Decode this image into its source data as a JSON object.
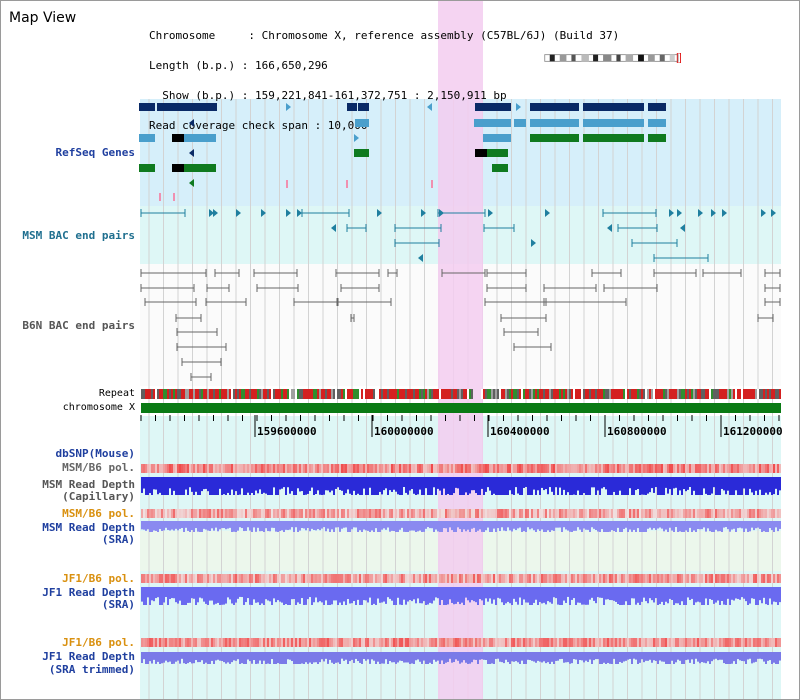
{
  "app": {
    "title": "Map View"
  },
  "info": {
    "chromosome_line": "Chromosome     : Chromosome X, reference assembly (C57BL/6J) (Build 37)",
    "length_line": "Length (b.p.) : 166,650,296",
    "show_line": "  Show (b.p.) : 159,221,841-161,372,751 : 2,150,911 bp",
    "coverage_line": "Read coverage check span : 10,000"
  },
  "tracks": {
    "refseq": "RefSeq Genes",
    "msm_bac": "MSM BAC end pairs",
    "b6n_bac": "B6N BAC end pairs",
    "repeat": "Repeat",
    "chromosome": "chromosome X",
    "dbsnp": "dbSNP(Mouse)",
    "msm_pol": "MSM/B6 pol.",
    "msm_depth_cap_1": "MSM Read Depth",
    "msm_depth_cap_2": "(Capillary)",
    "msm_pol_2": "MSM/B6 pol.",
    "msm_depth_sra_1": "MSM Read Depth",
    "msm_depth_sra_2": "(SRA)",
    "jf1_pol": "JF1/B6 pol.",
    "jf1_depth_sra_1": "JF1 Read Depth",
    "jf1_depth_sra_2": "(SRA)",
    "jf1_pol_2": "JF1/B6 pol.",
    "jf1_depth_trim_1": "JF1 Read Depth",
    "jf1_depth_trim_2": "(SRA trimmed)"
  },
  "axis": {
    "ticks": [
      "159600000",
      "160000000",
      "160400000",
      "160800000",
      "161200000"
    ]
  },
  "colors": {
    "refseq_bg": "#d6effa",
    "msm_bac_bg": "#def7f6",
    "lower_bg": "#def7f6",
    "highlight": "#f3cdf0",
    "refseq_label": "#1f3f9f",
    "msm_bac_label": "#1f6f8f",
    "b6n_label": "#555555",
    "pol_label": "#d9900f",
    "depth_label": "#1f3f9f",
    "gene_dark": "#0a2a66",
    "gene_mid": "#4a9fcc",
    "gene_green": "#0f7a1f",
    "bac_msm": "#1f7f9f",
    "bac_b6n": "#666666",
    "chromosome_bar": "#0a7a14"
  }
}
